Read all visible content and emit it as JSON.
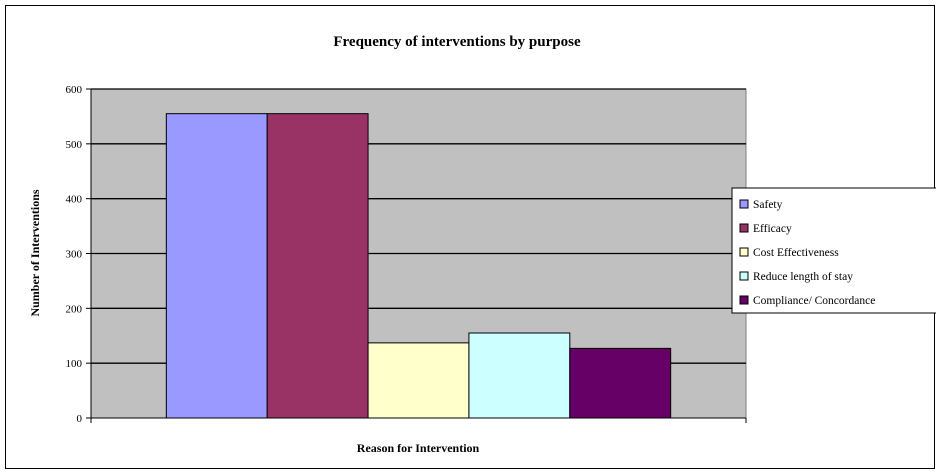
{
  "chart_data": {
    "type": "bar",
    "title": "Frequency of interventions by purpose",
    "xlabel": "Reason for Intervention",
    "ylabel": "Number of Interventions",
    "ylim": [
      0,
      600
    ],
    "yticks": [
      0,
      100,
      200,
      300,
      400,
      500,
      600
    ],
    "grid": true,
    "legend_position": "right",
    "plot_background": "#c0c0c0",
    "series": [
      {
        "name": "Safety",
        "value": 555,
        "color": "#9999ff"
      },
      {
        "name": "Efficacy",
        "value": 555,
        "color": "#993366"
      },
      {
        "name": "Cost Effectiveness",
        "value": 137,
        "color": "#ffffcc"
      },
      {
        "name": "Reduce length of stay",
        "value": 155,
        "color": "#ccffff"
      },
      {
        "name": "Compliance/ Concordance",
        "value": 127,
        "color": "#660066"
      }
    ]
  }
}
